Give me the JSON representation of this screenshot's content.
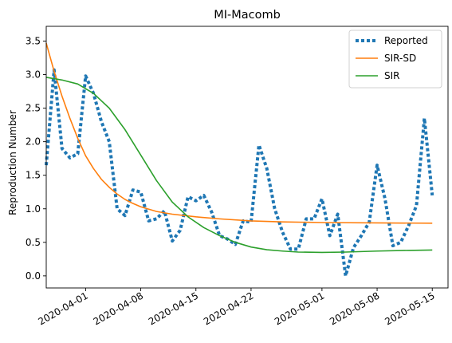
{
  "chart_data": {
    "type": "line",
    "title": "MI-Macomb",
    "xlabel": "",
    "ylabel": "Reproduction Number",
    "x_type": "date",
    "xlim": [
      "2020-03-27",
      "2020-05-17"
    ],
    "ylim": [
      -0.18,
      3.72
    ],
    "x_ticks": [
      "2020-04-01",
      "2020-04-08",
      "2020-04-15",
      "2020-04-22",
      "2020-05-01",
      "2020-05-08",
      "2020-05-15"
    ],
    "y_ticks": [
      0.0,
      0.5,
      1.0,
      1.5,
      2.0,
      2.5,
      3.0,
      3.5
    ],
    "y_tick_labels": [
      "0.0",
      "0.5",
      "1.0",
      "1.5",
      "2.0",
      "2.5",
      "3.0",
      "3.5"
    ],
    "legend": {
      "placement": "top-right"
    },
    "grid": false,
    "series": [
      {
        "name": "Reported",
        "color": "#1f77b4",
        "style": "dotted",
        "points": [
          [
            "2020-03-27",
            1.65
          ],
          [
            "2020-03-28",
            3.07
          ],
          [
            "2020-03-29",
            1.9
          ],
          [
            "2020-03-30",
            1.76
          ],
          [
            "2020-03-31",
            1.82
          ],
          [
            "2020-04-01",
            2.98
          ],
          [
            "2020-04-02",
            2.72
          ],
          [
            "2020-04-03",
            2.3
          ],
          [
            "2020-04-04",
            2.0
          ],
          [
            "2020-04-05",
            1.0
          ],
          [
            "2020-04-06",
            0.9
          ],
          [
            "2020-04-07",
            1.28
          ],
          [
            "2020-04-08",
            1.25
          ],
          [
            "2020-04-09",
            0.82
          ],
          [
            "2020-04-10",
            0.85
          ],
          [
            "2020-04-11",
            0.97
          ],
          [
            "2020-04-12",
            0.52
          ],
          [
            "2020-04-13",
            0.68
          ],
          [
            "2020-04-14",
            1.18
          ],
          [
            "2020-04-15",
            1.12
          ],
          [
            "2020-04-16",
            1.2
          ],
          [
            "2020-04-17",
            0.95
          ],
          [
            "2020-04-18",
            0.6
          ],
          [
            "2020-04-19",
            0.55
          ],
          [
            "2020-04-20",
            0.47
          ],
          [
            "2020-04-21",
            0.82
          ],
          [
            "2020-04-22",
            0.8
          ],
          [
            "2020-04-23",
            1.95
          ],
          [
            "2020-04-24",
            1.6
          ],
          [
            "2020-04-25",
            1.0
          ],
          [
            "2020-04-26",
            0.65
          ],
          [
            "2020-04-27",
            0.4
          ],
          [
            "2020-04-28",
            0.4
          ],
          [
            "2020-04-29",
            0.85
          ],
          [
            "2020-04-30",
            0.85
          ],
          [
            "2020-05-01",
            1.15
          ],
          [
            "2020-05-02",
            0.6
          ],
          [
            "2020-05-03",
            0.92
          ],
          [
            "2020-05-04",
            0.0
          ],
          [
            "2020-05-05",
            0.42
          ],
          [
            "2020-05-06",
            0.6
          ],
          [
            "2020-05-07",
            0.8
          ],
          [
            "2020-05-08",
            1.65
          ],
          [
            "2020-05-09",
            1.15
          ],
          [
            "2020-05-10",
            0.45
          ],
          [
            "2020-05-11",
            0.5
          ],
          [
            "2020-05-12",
            0.75
          ],
          [
            "2020-05-13",
            1.05
          ],
          [
            "2020-05-14",
            2.35
          ],
          [
            "2020-05-15",
            1.2
          ]
        ]
      },
      {
        "name": "SIR-SD",
        "color": "#ff7f0e",
        "style": "solid",
        "points": [
          [
            "2020-03-27",
            3.47
          ],
          [
            "2020-03-28",
            3.05
          ],
          [
            "2020-03-29",
            2.68
          ],
          [
            "2020-03-30",
            2.35
          ],
          [
            "2020-03-31",
            2.05
          ],
          [
            "2020-04-01",
            1.79
          ],
          [
            "2020-04-02",
            1.6
          ],
          [
            "2020-04-03",
            1.44
          ],
          [
            "2020-04-04",
            1.32
          ],
          [
            "2020-04-05",
            1.22
          ],
          [
            "2020-04-06",
            1.14
          ],
          [
            "2020-04-07",
            1.08
          ],
          [
            "2020-04-08",
            1.03
          ],
          [
            "2020-04-10",
            0.96
          ],
          [
            "2020-04-12",
            0.92
          ],
          [
            "2020-04-15",
            0.88
          ],
          [
            "2020-04-18",
            0.85
          ],
          [
            "2020-04-22",
            0.82
          ],
          [
            "2020-04-26",
            0.805
          ],
          [
            "2020-05-01",
            0.795
          ],
          [
            "2020-05-08",
            0.79
          ],
          [
            "2020-05-15",
            0.785
          ]
        ]
      },
      {
        "name": "SIR",
        "color": "#2ca02c",
        "style": "solid",
        "points": [
          [
            "2020-03-27",
            2.96
          ],
          [
            "2020-03-29",
            2.92
          ],
          [
            "2020-03-31",
            2.86
          ],
          [
            "2020-04-02",
            2.72
          ],
          [
            "2020-04-04",
            2.5
          ],
          [
            "2020-04-06",
            2.18
          ],
          [
            "2020-04-08",
            1.8
          ],
          [
            "2020-04-10",
            1.42
          ],
          [
            "2020-04-12",
            1.1
          ],
          [
            "2020-04-14",
            0.88
          ],
          [
            "2020-04-16",
            0.72
          ],
          [
            "2020-04-18",
            0.6
          ],
          [
            "2020-04-20",
            0.5
          ],
          [
            "2020-04-22",
            0.43
          ],
          [
            "2020-04-24",
            0.39
          ],
          [
            "2020-04-26",
            0.37
          ],
          [
            "2020-04-28",
            0.355
          ],
          [
            "2020-05-01",
            0.35
          ],
          [
            "2020-05-04",
            0.355
          ],
          [
            "2020-05-08",
            0.37
          ],
          [
            "2020-05-12",
            0.38
          ],
          [
            "2020-05-15",
            0.385
          ]
        ]
      }
    ]
  }
}
